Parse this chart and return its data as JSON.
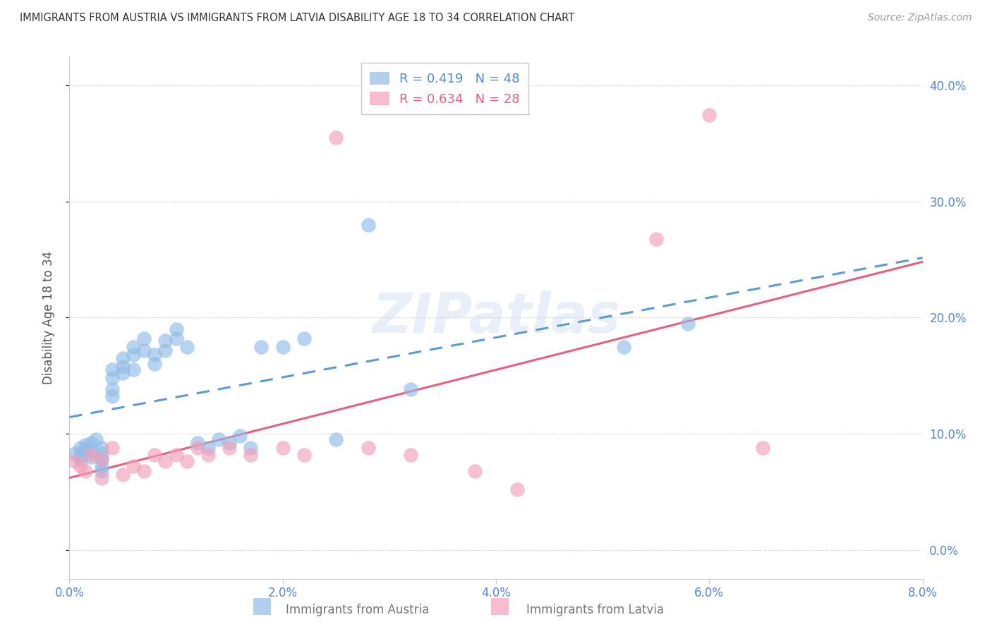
{
  "title": "IMMIGRANTS FROM AUSTRIA VS IMMIGRANTS FROM LATVIA DISABILITY AGE 18 TO 34 CORRELATION CHART",
  "source": "Source: ZipAtlas.com",
  "ylabel": "Disability Age 18 to 34",
  "x_min": 0.0,
  "x_max": 0.08,
  "y_min": -0.025,
  "y_max": 0.425,
  "x_ticks": [
    0.0,
    0.02,
    0.04,
    0.06,
    0.08
  ],
  "x_tick_labels": [
    "0.0%",
    "2.0%",
    "4.0%",
    "6.0%",
    "8.0%"
  ],
  "y_ticks": [
    0.0,
    0.1,
    0.2,
    0.3,
    0.4
  ],
  "y_tick_labels": [
    "0.0%",
    "10.0%",
    "20.0%",
    "30.0%",
    "40.0%"
  ],
  "legend_label1": "Immigrants from Austria",
  "legend_label2": "Immigrants from Latvia",
  "austria_color": "#92bce8",
  "latvia_color": "#f0a0b8",
  "austria_line_color": "#5b9bd5",
  "latvia_line_color": "#e8607a",
  "watermark": "ZIPatlas",
  "background_color": "#ffffff",
  "tick_label_color": "#5588cc",
  "grid_color": "#dddddd",
  "austria_x": [
    0.0005,
    0.001,
    0.001,
    0.001,
    0.0015,
    0.0015,
    0.002,
    0.002,
    0.002,
    0.0025,
    0.003,
    0.003,
    0.003,
    0.003,
    0.003,
    0.004,
    0.004,
    0.004,
    0.004,
    0.005,
    0.005,
    0.005,
    0.006,
    0.006,
    0.006,
    0.007,
    0.007,
    0.008,
    0.008,
    0.009,
    0.009,
    0.01,
    0.01,
    0.011,
    0.012,
    0.013,
    0.014,
    0.015,
    0.016,
    0.017,
    0.018,
    0.02,
    0.022,
    0.025,
    0.028,
    0.032,
    0.052,
    0.058
  ],
  "austria_y": [
    0.083,
    0.088,
    0.082,
    0.078,
    0.09,
    0.086,
    0.092,
    0.085,
    0.08,
    0.095,
    0.088,
    0.083,
    0.078,
    0.072,
    0.068,
    0.155,
    0.148,
    0.138,
    0.132,
    0.165,
    0.158,
    0.152,
    0.175,
    0.168,
    0.155,
    0.182,
    0.172,
    0.168,
    0.16,
    0.18,
    0.172,
    0.19,
    0.182,
    0.175,
    0.092,
    0.088,
    0.095,
    0.092,
    0.098,
    0.088,
    0.175,
    0.175,
    0.182,
    0.095,
    0.28,
    0.138,
    0.175,
    0.195
  ],
  "latvia_x": [
    0.0005,
    0.001,
    0.0015,
    0.002,
    0.003,
    0.003,
    0.004,
    0.005,
    0.006,
    0.007,
    0.008,
    0.009,
    0.01,
    0.011,
    0.012,
    0.013,
    0.015,
    0.017,
    0.02,
    0.022,
    0.025,
    0.028,
    0.032,
    0.038,
    0.042,
    0.055,
    0.06,
    0.065
  ],
  "latvia_y": [
    0.076,
    0.072,
    0.068,
    0.082,
    0.078,
    0.062,
    0.088,
    0.065,
    0.072,
    0.068,
    0.082,
    0.076,
    0.082,
    0.076,
    0.088,
    0.082,
    0.088,
    0.082,
    0.088,
    0.082,
    0.355,
    0.088,
    0.082,
    0.068,
    0.052,
    0.268,
    0.375,
    0.088
  ]
}
